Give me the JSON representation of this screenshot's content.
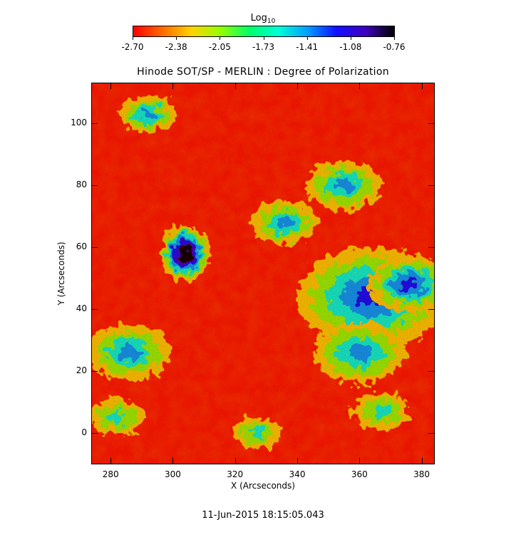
{
  "colorbar": {
    "title": "Log",
    "title_sub": "10",
    "tick_labels": [
      "-2.70",
      "-2.38",
      "-2.05",
      "-1.73",
      "-1.41",
      "-1.08",
      "-0.76"
    ],
    "range": [
      -2.7,
      -0.76
    ],
    "colormap": [
      "#ff0000",
      "#ff6a00",
      "#ffd200",
      "#96ff00",
      "#00ff6a",
      "#00ffd8",
      "#00a0ff",
      "#1010ff",
      "#4000c0",
      "#000000"
    ]
  },
  "plot": {
    "title": "Hinode SOT/SP - MERLIN : Degree of Polarization",
    "timestamp": "11-Jun-2015 18:15:05.043"
  },
  "chart_data": {
    "type": "heatmap",
    "title": "Hinode SOT/SP - MERLIN : Degree of Polarization",
    "xlabel": "X (Arcseconds)",
    "ylabel": "Y (Arcseconds)",
    "xlim": [
      274,
      384
    ],
    "ylim": [
      -10,
      113
    ],
    "xticks": [
      "280",
      "300",
      "320",
      "340",
      "360",
      "380"
    ],
    "yticks": [
      "0",
      "20",
      "40",
      "60",
      "80",
      "100"
    ],
    "value_range_log10": [
      -2.7,
      -0.76
    ],
    "features": [
      {
        "kind": "sunspot",
        "x": 304,
        "y": 58,
        "radius": 8,
        "peak": -0.76
      },
      {
        "kind": "network",
        "x": 286,
        "y": 26,
        "radius": 9,
        "peak": -1.25
      },
      {
        "kind": "network",
        "x": 364,
        "y": 44,
        "radius": 16,
        "peak": -1.15
      },
      {
        "kind": "network",
        "x": 376,
        "y": 48,
        "radius": 9,
        "peak": -1.1
      },
      {
        "kind": "network",
        "x": 360,
        "y": 26,
        "radius": 10,
        "peak": -1.35
      },
      {
        "kind": "network",
        "x": 336,
        "y": 68,
        "radius": 7,
        "peak": -1.35
      },
      {
        "kind": "network",
        "x": 355,
        "y": 80,
        "radius": 8,
        "peak": -1.4
      },
      {
        "kind": "network",
        "x": 292,
        "y": 103,
        "radius": 6,
        "peak": -1.45
      },
      {
        "kind": "network",
        "x": 327,
        "y": 0,
        "radius": 5,
        "peak": -1.5
      },
      {
        "kind": "network",
        "x": 282,
        "y": 5,
        "radius": 6,
        "peak": -1.5
      },
      {
        "kind": "network",
        "x": 367,
        "y": 7,
        "radius": 6,
        "peak": -1.5
      }
    ]
  }
}
